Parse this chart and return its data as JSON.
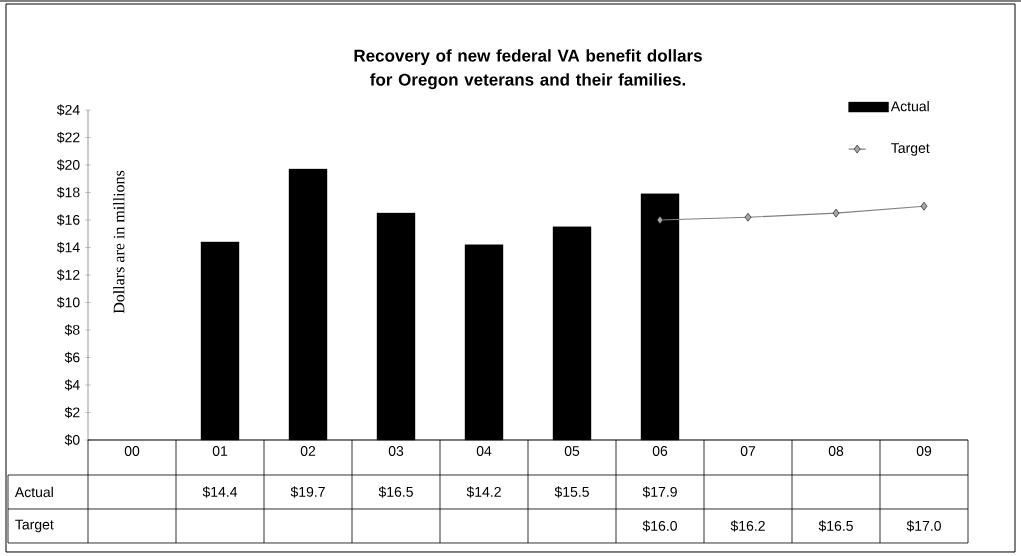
{
  "chart_data": {
    "type": "bar",
    "title": "Recovery of new federal VA benefit dollars for Oregon veterans and their families.",
    "ylabel": "Dollars are in millions",
    "categories": [
      "00",
      "01",
      "02",
      "03",
      "04",
      "05",
      "06",
      "07",
      "08",
      "09"
    ],
    "series": [
      {
        "name": "Actual",
        "color": "#000000",
        "values": [
          null,
          14.4,
          19.7,
          16.5,
          14.2,
          15.5,
          17.9,
          null,
          null,
          null
        ],
        "value_labels": [
          null,
          "$14.4",
          "$19.7",
          "$16.5",
          "$14.2",
          "$15.5",
          "$17.9",
          null,
          null,
          null
        ]
      },
      {
        "name": "Target",
        "type": "line",
        "color": "#808080",
        "values": [
          null,
          null,
          null,
          null,
          null,
          null,
          16.0,
          16.2,
          16.5,
          17.0
        ],
        "value_labels": [
          null,
          null,
          null,
          null,
          null,
          null,
          "$16.0",
          "$16.2",
          "$16.5",
          "$17.0"
        ]
      }
    ],
    "ylim": [
      0,
      24
    ],
    "yticks": [
      {
        "value": 0,
        "label": "$0"
      },
      {
        "value": 2,
        "label": "$2"
      },
      {
        "value": 4,
        "label": "$4"
      },
      {
        "value": 6,
        "label": "$6"
      },
      {
        "value": 8,
        "label": "$8"
      },
      {
        "value": 10,
        "label": "$10"
      },
      {
        "value": 12,
        "label": "$12"
      },
      {
        "value": 14,
        "label": "$14"
      },
      {
        "value": 16,
        "label": "$16"
      },
      {
        "value": 18,
        "label": "$18"
      },
      {
        "value": 20,
        "label": "$20"
      },
      {
        "value": 22,
        "label": "$22"
      },
      {
        "value": 24,
        "label": "$24"
      }
    ],
    "legend": "top right",
    "marker": "diamond",
    "line_style": "solid"
  }
}
